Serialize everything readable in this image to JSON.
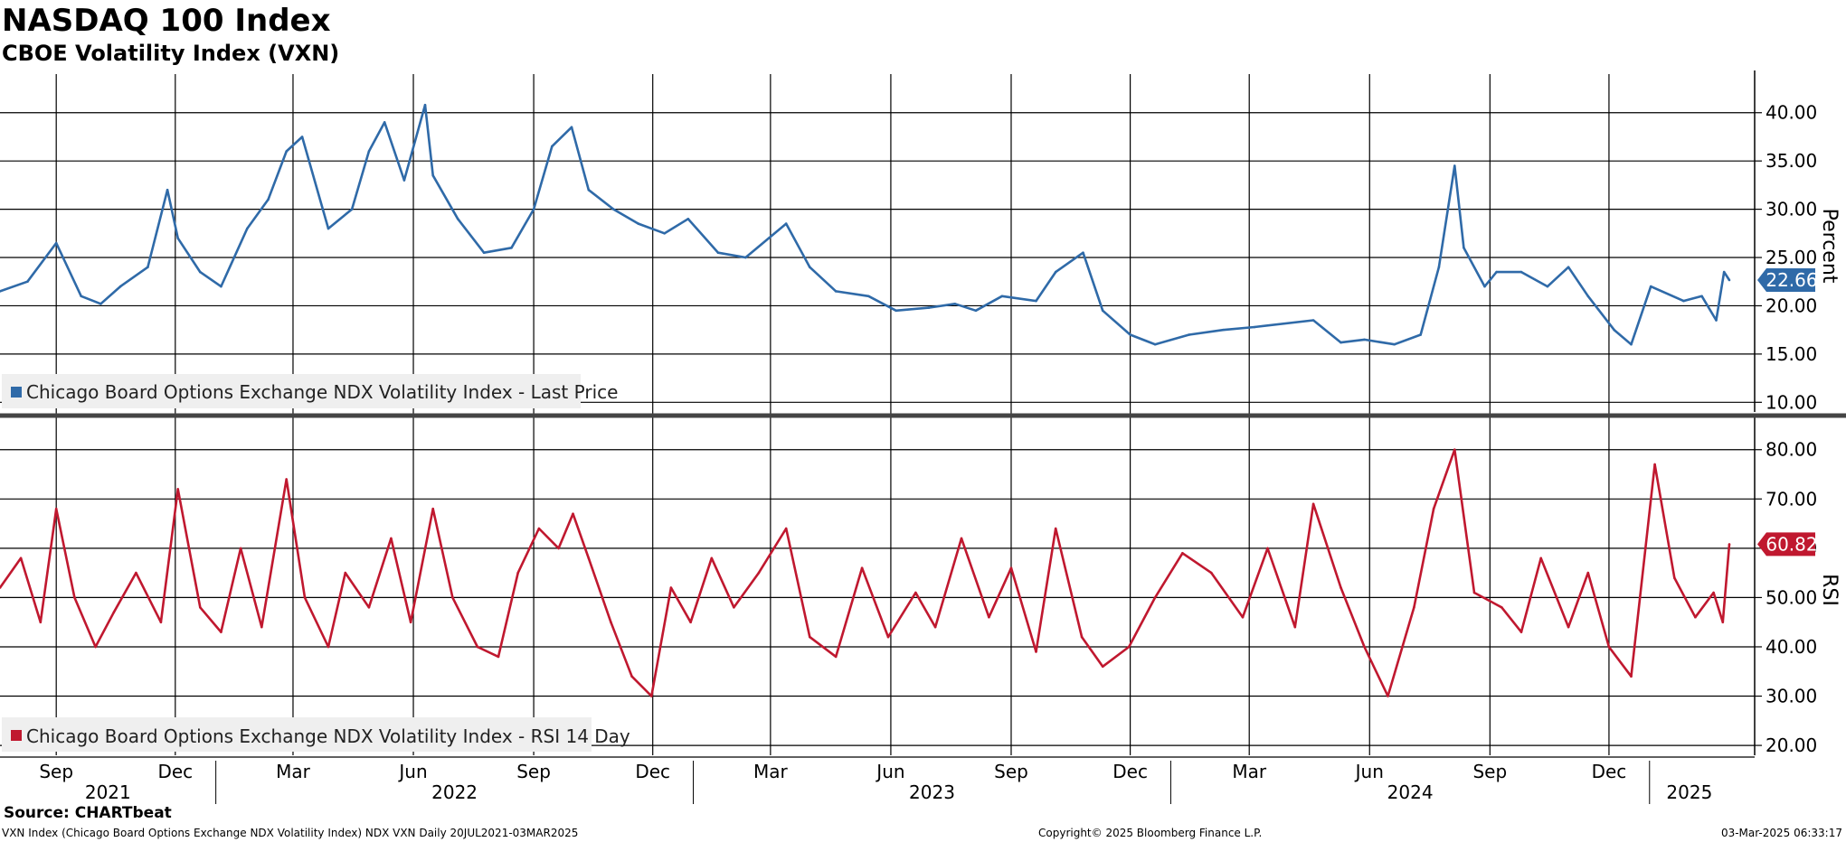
{
  "header": {
    "title": "NASDAQ 100 Index",
    "subtitle": "CBOE Volatility Index (VXN)"
  },
  "footer": {
    "source": "Source: CHARTbeat",
    "description": "VXN Index (Chicago Board Options Exchange NDX Volatility Index) NDX VXN  Daily 20JUL2021-03MAR2025",
    "copyright": "Copyright© 2025 Bloomberg Finance L.P.",
    "timestamp": "03-Mar-2025 06:33:17"
  },
  "colors": {
    "price_line": "#2f6aa8",
    "rsi_line": "#c0182f",
    "grid": "#000000",
    "divider": "#444444"
  },
  "chart_data": [
    {
      "type": "line",
      "title": "",
      "ylabel": "Percent",
      "ylim": [
        9,
        44
      ],
      "yticks": [
        "10.00",
        "15.00",
        "20.00",
        "25.00",
        "30.00",
        "35.00",
        "40.00"
      ],
      "last_value_label": "22.66",
      "legend_position": "bottom-left",
      "grid": true,
      "series": [
        {
          "name": "Chicago Board Options Exchange NDX Volatility Index - Last Price",
          "x": [
            "2021-07-20",
            "2021-08-10",
            "2021-09-01",
            "2021-09-20",
            "2021-10-05",
            "2021-10-20",
            "2021-11-10",
            "2021-11-25",
            "2021-12-03",
            "2021-12-20",
            "2022-01-05",
            "2022-01-25",
            "2022-02-10",
            "2022-02-24",
            "2022-03-08",
            "2022-03-28",
            "2022-04-15",
            "2022-04-28",
            "2022-05-10",
            "2022-05-25",
            "2022-06-10",
            "2022-06-16",
            "2022-07-05",
            "2022-07-25",
            "2022-08-15",
            "2022-09-01",
            "2022-09-15",
            "2022-09-30",
            "2022-10-13",
            "2022-11-01",
            "2022-11-20",
            "2022-12-10",
            "2022-12-28",
            "2023-01-20",
            "2023-02-10",
            "2023-03-13",
            "2023-03-31",
            "2023-04-20",
            "2023-05-15",
            "2023-06-05",
            "2023-06-30",
            "2023-07-20",
            "2023-08-05",
            "2023-08-25",
            "2023-09-20",
            "2023-10-05",
            "2023-10-26",
            "2023-11-10",
            "2023-12-01",
            "2023-12-20",
            "2024-01-15",
            "2024-02-10",
            "2024-03-05",
            "2024-04-19",
            "2024-05-10",
            "2024-05-28",
            "2024-06-20",
            "2024-07-10",
            "2024-07-24",
            "2024-08-05",
            "2024-08-12",
            "2024-08-28",
            "2024-09-06",
            "2024-09-25",
            "2024-10-15",
            "2024-10-31",
            "2024-11-15",
            "2024-12-05",
            "2024-12-18",
            "2025-01-02",
            "2025-01-27",
            "2025-02-10",
            "2025-02-21",
            "2025-02-27",
            "2025-03-03"
          ],
          "values": [
            21.5,
            22.5,
            26.5,
            21.0,
            20.2,
            22.0,
            24.0,
            32.0,
            27.0,
            23.5,
            22.0,
            28.0,
            31.0,
            36.0,
            37.5,
            28.0,
            30.0,
            36.0,
            39.0,
            33.0,
            40.8,
            33.5,
            29.0,
            25.5,
            26.0,
            30.0,
            36.5,
            38.5,
            32.0,
            30.0,
            28.5,
            27.5,
            29.0,
            25.5,
            25.0,
            28.5,
            24.0,
            21.5,
            21.0,
            19.5,
            19.8,
            20.2,
            19.5,
            21.0,
            20.5,
            23.5,
            25.5,
            19.5,
            17.0,
            16.0,
            17.0,
            17.5,
            17.8,
            18.5,
            16.2,
            16.5,
            16.0,
            17.0,
            24.0,
            34.5,
            26.0,
            22.0,
            23.5,
            23.5,
            22.0,
            24.0,
            21.0,
            17.5,
            16.0,
            22.0,
            20.5,
            21.0,
            18.5,
            23.5,
            22.66
          ]
        }
      ]
    },
    {
      "type": "line",
      "title": "",
      "ylabel": "RSI",
      "ylim": [
        18,
        86
      ],
      "yticks": [
        "20.00",
        "30.00",
        "40.00",
        "50.00",
        "60.00",
        "70.00",
        "80.00"
      ],
      "last_value_label": "60.82",
      "legend_position": "bottom-left",
      "grid": true,
      "x_month_labels": [
        "Sep",
        "Dec",
        "Mar",
        "Jun",
        "Sep",
        "Dec",
        "Mar",
        "Jun",
        "Sep",
        "Dec",
        "Mar",
        "Jun",
        "Sep",
        "Dec"
      ],
      "x_year_labels": [
        "2021",
        "2022",
        "2023",
        "2024",
        "2025"
      ],
      "series": [
        {
          "name": "Chicago Board Options Exchange NDX Volatility Index - RSI 14 Day",
          "x": [
            "2021-07-20",
            "2021-08-05",
            "2021-08-20",
            "2021-09-01",
            "2021-09-15",
            "2021-10-01",
            "2021-10-15",
            "2021-11-01",
            "2021-11-20",
            "2021-12-03",
            "2021-12-20",
            "2022-01-05",
            "2022-01-20",
            "2022-02-05",
            "2022-02-24",
            "2022-03-10",
            "2022-03-28",
            "2022-04-10",
            "2022-04-28",
            "2022-05-15",
            "2022-05-30",
            "2022-06-16",
            "2022-07-01",
            "2022-07-20",
            "2022-08-05",
            "2022-08-20",
            "2022-09-05",
            "2022-09-20",
            "2022-10-01",
            "2022-10-13",
            "2022-10-30",
            "2022-11-15",
            "2022-11-30",
            "2022-12-15",
            "2022-12-30",
            "2023-01-15",
            "2023-02-01",
            "2023-02-20",
            "2023-03-13",
            "2023-03-31",
            "2023-04-20",
            "2023-05-10",
            "2023-05-30",
            "2023-06-20",
            "2023-07-05",
            "2023-07-25",
            "2023-08-15",
            "2023-09-01",
            "2023-09-20",
            "2023-10-05",
            "2023-10-25",
            "2023-11-10",
            "2023-11-30",
            "2023-12-20",
            "2024-01-10",
            "2024-02-01",
            "2024-02-25",
            "2024-03-15",
            "2024-04-05",
            "2024-04-19",
            "2024-05-10",
            "2024-05-28",
            "2024-06-15",
            "2024-07-05",
            "2024-07-20",
            "2024-08-05",
            "2024-08-20",
            "2024-09-10",
            "2024-09-25",
            "2024-10-10",
            "2024-10-31",
            "2024-11-15",
            "2024-12-01",
            "2024-12-18",
            "2025-01-05",
            "2025-01-20",
            "2025-02-05",
            "2025-02-19",
            "2025-02-26",
            "2025-03-03"
          ],
          "values": [
            52,
            58,
            45,
            68,
            50,
            40,
            47,
            55,
            45,
            72,
            48,
            43,
            60,
            44,
            74,
            50,
            40,
            55,
            48,
            62,
            45,
            68,
            50,
            40,
            38,
            55,
            64,
            60,
            67,
            58,
            45,
            34,
            30,
            52,
            45,
            58,
            48,
            55,
            64,
            42,
            38,
            56,
            42,
            51,
            44,
            62,
            46,
            56,
            39,
            64,
            42,
            36,
            40,
            50,
            59,
            55,
            46,
            60,
            44,
            69,
            52,
            40,
            30,
            48,
            68,
            80,
            51,
            48,
            43,
            58,
            44,
            55,
            40,
            34,
            77,
            54,
            46,
            51,
            45,
            60.82
          ]
        }
      ]
    }
  ]
}
